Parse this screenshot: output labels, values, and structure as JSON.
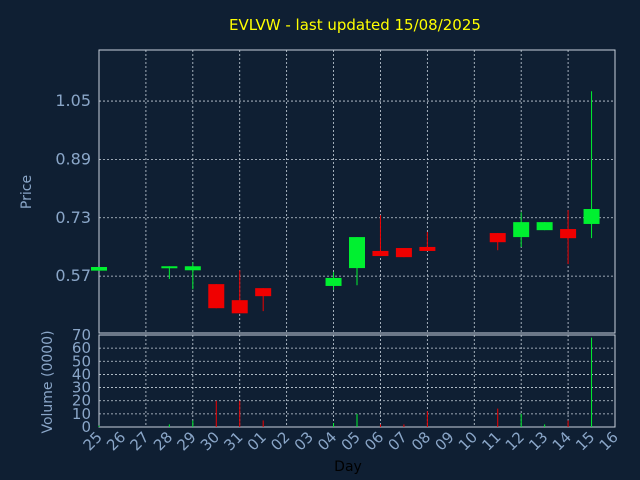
{
  "chart_data": [
    {
      "type": "candlestick",
      "title": "EVLVW - last updated 15/08/2025",
      "ylabel": "Price",
      "ylim": [
        0.414,
        1.19
      ],
      "yticks": [
        0.57,
        0.73,
        0.89,
        1.05
      ],
      "grid": true,
      "up_color": "#00f030",
      "down_color": "#f00000",
      "open": [
        0.585,
        null,
        null,
        0.597,
        0.586,
        0.548,
        0.504,
        0.537,
        null,
        null,
        0.543,
        0.592,
        0.639,
        0.647,
        0.65,
        null,
        null,
        0.688,
        0.677,
        0.696,
        0.699,
        0.713,
        null
      ],
      "high": [
        0.595,
        null,
        null,
        0.597,
        0.608,
        0.548,
        0.586,
        0.537,
        null,
        null,
        0.581,
        0.677,
        0.737,
        0.647,
        0.691,
        null,
        null,
        0.688,
        0.745,
        0.718,
        0.751,
        1.077,
        null
      ],
      "low": [
        0.585,
        null,
        null,
        0.562,
        0.534,
        0.482,
        0.468,
        0.474,
        null,
        null,
        0.532,
        0.545,
        0.625,
        0.622,
        0.639,
        null,
        null,
        0.641,
        0.65,
        0.696,
        0.603,
        0.674,
        null
      ],
      "close": [
        0.595,
        null,
        null,
        0.597,
        0.597,
        0.482,
        0.468,
        0.515,
        null,
        null,
        0.565,
        0.677,
        0.625,
        0.622,
        0.639,
        null,
        null,
        0.663,
        0.718,
        0.718,
        0.674,
        0.754,
        null
      ]
    },
    {
      "type": "bar",
      "xlabel": "Day",
      "ylabel": "Volume (0000)",
      "categories": [
        "25",
        "26",
        "27",
        "28",
        "29",
        "30",
        "31",
        "01",
        "02",
        "03",
        "04",
        "05",
        "06",
        "07",
        "08",
        "09",
        "10",
        "11",
        "12",
        "13",
        "14",
        "15",
        "16"
      ],
      "values": [
        1,
        null,
        null,
        2,
        5,
        20,
        20,
        5,
        null,
        null,
        3,
        10,
        2,
        2,
        12,
        null,
        null,
        14,
        10,
        2,
        5,
        68,
        null
      ],
      "ylim": [
        0,
        70
      ],
      "yticks": [
        0,
        10,
        20,
        30,
        40,
        50,
        60,
        70
      ],
      "grid": true
    }
  ]
}
